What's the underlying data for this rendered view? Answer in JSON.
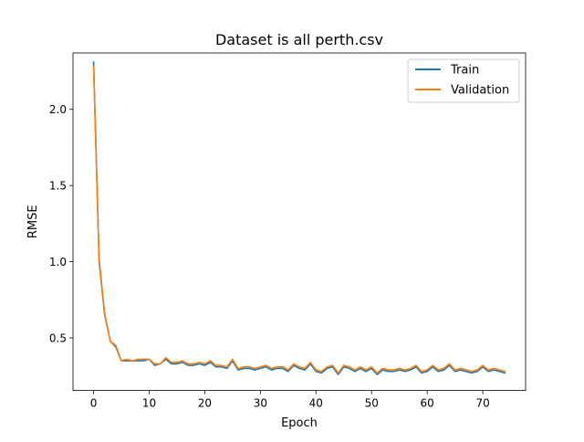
{
  "chart_data": {
    "type": "line",
    "title": "Dataset is all perth.csv",
    "xlabel": "Epoch",
    "ylabel": "RMSE",
    "xlim": [
      -3.7,
      77.7
    ],
    "ylim": [
      0.155,
      2.37
    ],
    "xticks": [
      0,
      10,
      20,
      30,
      40,
      50,
      60,
      70
    ],
    "yticks": [
      0.5,
      1.0,
      1.5,
      2.0
    ],
    "ytick_labels": [
      "0.5",
      "1.0",
      "1.5",
      "2.0"
    ],
    "grid": false,
    "legend_position": "top-right",
    "x": [
      0,
      1,
      2,
      3,
      4,
      5,
      6,
      7,
      8,
      9,
      10,
      11,
      12,
      13,
      14,
      15,
      16,
      17,
      18,
      19,
      20,
      21,
      22,
      23,
      24,
      25,
      26,
      27,
      28,
      29,
      30,
      31,
      32,
      33,
      34,
      35,
      36,
      37,
      38,
      39,
      40,
      41,
      42,
      43,
      44,
      45,
      46,
      47,
      48,
      49,
      50,
      51,
      52,
      53,
      54,
      55,
      56,
      57,
      58,
      59,
      60,
      61,
      62,
      63,
      64,
      65,
      66,
      67,
      68,
      69,
      70,
      71,
      72,
      73,
      74
    ],
    "series": [
      {
        "name": "Train",
        "color": "#1f77b4",
        "values": [
          2.31,
          1.0,
          0.65,
          0.48,
          0.44,
          0.35,
          0.35,
          0.35,
          0.35,
          0.35,
          0.36,
          0.32,
          0.33,
          0.36,
          0.33,
          0.33,
          0.34,
          0.32,
          0.32,
          0.33,
          0.32,
          0.34,
          0.31,
          0.31,
          0.3,
          0.35,
          0.29,
          0.3,
          0.3,
          0.29,
          0.3,
          0.31,
          0.29,
          0.3,
          0.3,
          0.28,
          0.32,
          0.3,
          0.29,
          0.33,
          0.28,
          0.27,
          0.3,
          0.31,
          0.26,
          0.31,
          0.3,
          0.28,
          0.3,
          0.28,
          0.3,
          0.26,
          0.29,
          0.28,
          0.28,
          0.29,
          0.28,
          0.29,
          0.31,
          0.27,
          0.28,
          0.31,
          0.28,
          0.29,
          0.32,
          0.28,
          0.29,
          0.28,
          0.27,
          0.28,
          0.31,
          0.28,
          0.29,
          0.28,
          0.27
        ]
      },
      {
        "name": "Validation",
        "color": "#ff7f0e",
        "values": [
          2.28,
          1.02,
          0.66,
          0.48,
          0.45,
          0.35,
          0.36,
          0.35,
          0.36,
          0.36,
          0.36,
          0.33,
          0.33,
          0.37,
          0.34,
          0.34,
          0.35,
          0.33,
          0.33,
          0.34,
          0.33,
          0.35,
          0.32,
          0.32,
          0.31,
          0.36,
          0.3,
          0.31,
          0.31,
          0.3,
          0.31,
          0.32,
          0.3,
          0.31,
          0.31,
          0.29,
          0.33,
          0.31,
          0.3,
          0.34,
          0.29,
          0.28,
          0.31,
          0.32,
          0.27,
          0.32,
          0.31,
          0.29,
          0.31,
          0.29,
          0.31,
          0.27,
          0.3,
          0.29,
          0.29,
          0.3,
          0.29,
          0.3,
          0.32,
          0.28,
          0.29,
          0.32,
          0.29,
          0.3,
          0.33,
          0.29,
          0.3,
          0.29,
          0.28,
          0.29,
          0.32,
          0.29,
          0.3,
          0.29,
          0.28
        ]
      }
    ]
  }
}
